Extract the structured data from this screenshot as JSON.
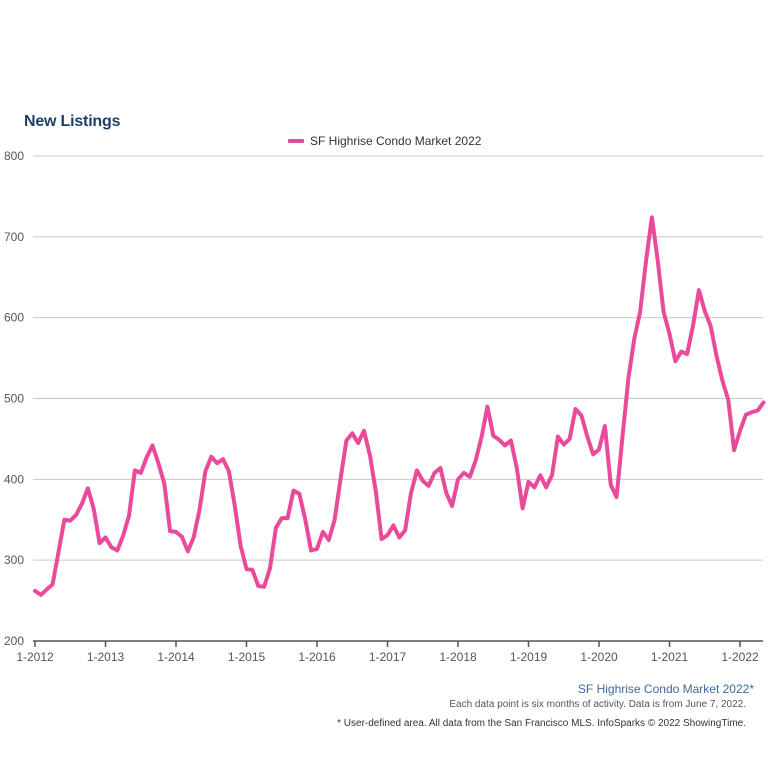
{
  "chart_data": {
    "type": "line",
    "title": "New Listings",
    "xlabel": "",
    "ylabel": "",
    "ylim": [
      200,
      800
    ],
    "yticks": [
      200,
      300,
      400,
      500,
      600,
      700,
      800
    ],
    "xticks": [
      "1-2012",
      "1-2013",
      "1-2014",
      "1-2015",
      "1-2016",
      "1-2017",
      "1-2018",
      "1-2019",
      "1-2020",
      "1-2021",
      "1-2022"
    ],
    "grid": true,
    "legend_position": "top-center",
    "x_start": "1-2012",
    "x_step": "1 month",
    "series": [
      {
        "name": "SF Highrise Condo Market 2022",
        "color": "#ea4a9a",
        "values": [
          262,
          257,
          264,
          270,
          310,
          350,
          349,
          356,
          370,
          389,
          363,
          321,
          328,
          316,
          312,
          330,
          355,
          411,
          408,
          427,
          442,
          420,
          395,
          336,
          335,
          329,
          311,
          328,
          362,
          410,
          428,
          420,
          425,
          410,
          367,
          318,
          289,
          288,
          268,
          267,
          290,
          340,
          352,
          352,
          386,
          382,
          350,
          312,
          314,
          335,
          325,
          350,
          400,
          448,
          457,
          445,
          460,
          430,
          385,
          326,
          331,
          343,
          328,
          337,
          383,
          411,
          398,
          392,
          408,
          414,
          383,
          367,
          400,
          408,
          403,
          423,
          452,
          490,
          454,
          449,
          442,
          448,
          414,
          364,
          397,
          390,
          405,
          390,
          405,
          453,
          443,
          450,
          487,
          479,
          453,
          431,
          437,
          466,
          393,
          378,
          453,
          525,
          574,
          607,
          670,
          724,
          670,
          607,
          580,
          546,
          558,
          555,
          590,
          634,
          608,
          590,
          553,
          522,
          498,
          436,
          460,
          480,
          483,
          485,
          495
        ]
      }
    ]
  },
  "legend": {
    "label": "SF Highrise Condo Market 2022",
    "color": "#ea4a9a"
  },
  "footer": {
    "market": "SF Highrise Condo Market 2022*",
    "note": "Each data point is six months of activity. Data is from June 7, 2022.",
    "source": "* User-defined area. All data from the San Francisco MLS. InfoSparks © 2022 ShowingTime."
  }
}
